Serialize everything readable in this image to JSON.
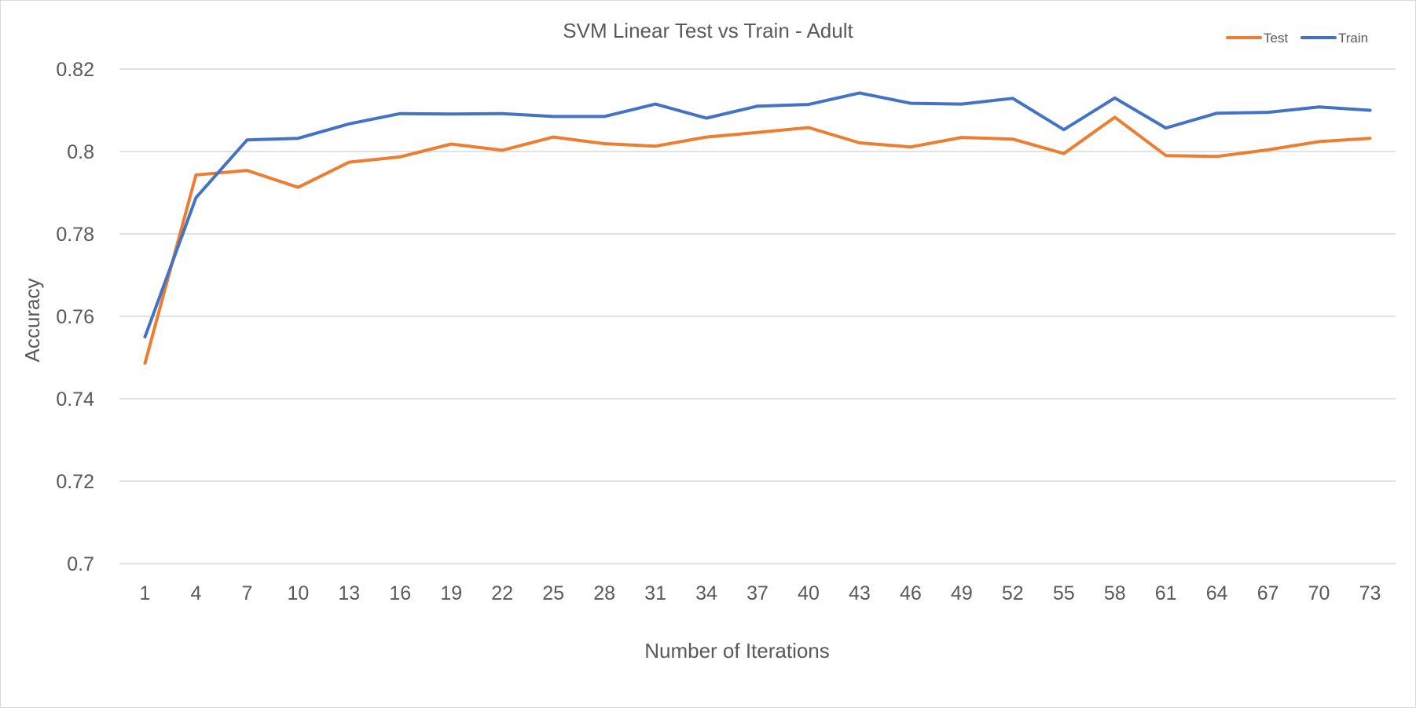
{
  "chart_data": {
    "type": "line",
    "title": "SVM Linear Test vs Train - Adult",
    "xlabel": "Number of Iterations",
    "ylabel": "Accuracy",
    "ylim": [
      0.7,
      0.82
    ],
    "y_ticks": [
      "0.82",
      "0.8",
      "0.78",
      "0.76",
      "0.74",
      "0.72",
      "0.7"
    ],
    "y_tick_values": [
      0.82,
      0.8,
      0.78,
      0.76,
      0.74,
      0.72,
      0.7
    ],
    "grid": true,
    "legend_position": "top-right",
    "categories": [
      "1",
      "4",
      "7",
      "10",
      "13",
      "16",
      "19",
      "22",
      "25",
      "28",
      "31",
      "34",
      "37",
      "40",
      "43",
      "46",
      "49",
      "52",
      "55",
      "58",
      "61",
      "64",
      "67",
      "70",
      "73"
    ],
    "series": [
      {
        "name": "Test",
        "color": "#ED7D31",
        "values": [
          0.7486,
          0.7943,
          0.7954,
          0.7913,
          0.7974,
          0.7987,
          0.8018,
          0.8003,
          0.8035,
          0.8019,
          0.8013,
          0.8035,
          0.8046,
          0.8058,
          0.8021,
          0.8011,
          0.8034,
          0.803,
          0.7995,
          0.8083,
          0.799,
          0.7988,
          0.8004,
          0.8024,
          0.8032
        ]
      },
      {
        "name": "Train",
        "color": "#4472C4",
        "values": [
          0.755,
          0.7888,
          0.8028,
          0.8032,
          0.8067,
          0.8092,
          0.8091,
          0.8092,
          0.8085,
          0.8085,
          0.8115,
          0.8081,
          0.811,
          0.8114,
          0.8142,
          0.8117,
          0.8115,
          0.8129,
          0.8053,
          0.813,
          0.8057,
          0.8093,
          0.8095,
          0.8108,
          0.81
        ]
      }
    ]
  }
}
